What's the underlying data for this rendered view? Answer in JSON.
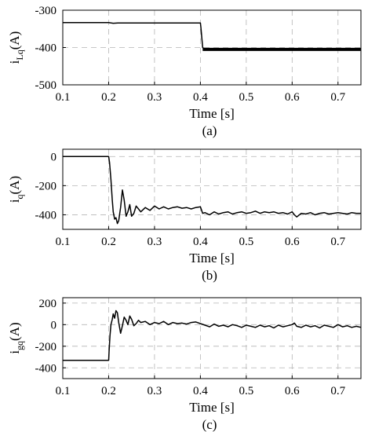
{
  "chart_data": [
    {
      "type": "line",
      "caption": "(a)",
      "xlabel": "Time [s]",
      "ylabel": {
        "main": "i",
        "sub": "Lq",
        "unit": "(A)"
      },
      "xlim": [
        0.1,
        0.75
      ],
      "ylim": [
        -500,
        -300
      ],
      "xticks": [
        0.1,
        0.2,
        0.3,
        0.4,
        0.5,
        0.6,
        0.7
      ],
      "xtick_labels": [
        "0.1",
        "0.2",
        "0.3",
        "0.4",
        "0.5",
        "0.6",
        "0.7"
      ],
      "yticks": [
        -300,
        -400,
        -500
      ],
      "ytick_labels": [
        "-300",
        "-400",
        "-500"
      ],
      "grid": true,
      "series": [
        {
          "x": [
            0.1,
            0.2,
            0.21,
            0.22,
            0.25,
            0.3,
            0.35,
            0.4,
            0.401,
            0.405,
            0.41,
            0.45,
            0.5,
            0.55,
            0.6,
            0.65,
            0.7,
            0.75
          ],
          "y": [
            -333,
            -333,
            -335,
            -334,
            -334,
            -334,
            -334,
            -334,
            -345,
            -400,
            -405,
            -405,
            -405,
            -405,
            -405,
            -405,
            -405,
            -405
          ]
        }
      ]
    },
    {
      "type": "line",
      "caption": "(b)",
      "xlabel": "Time [s]",
      "ylabel": {
        "main": "i",
        "sub": "q",
        "unit": "(A)"
      },
      "xlim": [
        0.1,
        0.75
      ],
      "ylim": [
        -500,
        50
      ],
      "xticks": [
        0.1,
        0.2,
        0.3,
        0.4,
        0.5,
        0.6,
        0.7
      ],
      "xtick_labels": [
        "0.1",
        "0.2",
        "0.3",
        "0.4",
        "0.5",
        "0.6",
        "0.7"
      ],
      "yticks": [
        0,
        -200,
        -400
      ],
      "ytick_labels": [
        "0",
        "-200",
        "-400"
      ],
      "grid": true,
      "series": [
        {
          "x": [
            0.1,
            0.2,
            0.202,
            0.205,
            0.208,
            0.21,
            0.213,
            0.216,
            0.219,
            0.222,
            0.226,
            0.23,
            0.234,
            0.238,
            0.242,
            0.246,
            0.25,
            0.255,
            0.26,
            0.265,
            0.27,
            0.28,
            0.29,
            0.3,
            0.31,
            0.32,
            0.33,
            0.34,
            0.35,
            0.36,
            0.37,
            0.38,
            0.39,
            0.4,
            0.405,
            0.41,
            0.42,
            0.43,
            0.44,
            0.45,
            0.46,
            0.47,
            0.48,
            0.49,
            0.5,
            0.51,
            0.52,
            0.53,
            0.54,
            0.55,
            0.56,
            0.57,
            0.58,
            0.59,
            0.6,
            0.605,
            0.61,
            0.62,
            0.63,
            0.64,
            0.65,
            0.66,
            0.67,
            0.68,
            0.69,
            0.7,
            0.71,
            0.72,
            0.73,
            0.74,
            0.75
          ],
          "y": [
            0,
            0,
            -40,
            -160,
            -300,
            -380,
            -430,
            -420,
            -460,
            -440,
            -350,
            -230,
            -300,
            -410,
            -380,
            -330,
            -410,
            -390,
            -340,
            -360,
            -380,
            -350,
            -370,
            -340,
            -360,
            -345,
            -360,
            -350,
            -345,
            -355,
            -350,
            -360,
            -350,
            -345,
            -390,
            -385,
            -400,
            -380,
            -395,
            -385,
            -380,
            -395,
            -385,
            -380,
            -390,
            -385,
            -375,
            -390,
            -380,
            -385,
            -380,
            -390,
            -385,
            -395,
            -380,
            -400,
            -415,
            -390,
            -395,
            -385,
            -400,
            -390,
            -385,
            -395,
            -390,
            -385,
            -390,
            -395,
            -385,
            -390,
            -390
          ]
        }
      ]
    },
    {
      "type": "line",
      "caption": "(c)",
      "xlabel": "Time [s]",
      "ylabel": {
        "main": "i",
        "sub": "gq",
        "unit": "(A)"
      },
      "xlim": [
        0.1,
        0.75
      ],
      "ylim": [
        -500,
        250
      ],
      "xticks": [
        0.1,
        0.2,
        0.3,
        0.4,
        0.5,
        0.6,
        0.7
      ],
      "xtick_labels": [
        "0.1",
        "0.2",
        "0.3",
        "0.4",
        "0.5",
        "0.6",
        "0.7"
      ],
      "yticks": [
        200,
        0,
        -200,
        -400
      ],
      "ytick_labels": [
        "200",
        "0",
        "-200",
        "-400"
      ],
      "grid": true,
      "series": [
        {
          "x": [
            0.1,
            0.2,
            0.201,
            0.203,
            0.205,
            0.208,
            0.21,
            0.213,
            0.216,
            0.219,
            0.222,
            0.226,
            0.23,
            0.234,
            0.238,
            0.242,
            0.246,
            0.25,
            0.255,
            0.26,
            0.265,
            0.27,
            0.28,
            0.29,
            0.3,
            0.31,
            0.32,
            0.33,
            0.34,
            0.35,
            0.36,
            0.37,
            0.38,
            0.39,
            0.4,
            0.41,
            0.42,
            0.43,
            0.44,
            0.45,
            0.46,
            0.47,
            0.48,
            0.49,
            0.5,
            0.51,
            0.52,
            0.53,
            0.54,
            0.55,
            0.56,
            0.57,
            0.58,
            0.59,
            0.6,
            0.605,
            0.61,
            0.62,
            0.63,
            0.64,
            0.65,
            0.66,
            0.67,
            0.68,
            0.69,
            0.7,
            0.71,
            0.72,
            0.73,
            0.74,
            0.75
          ],
          "y": [
            -330,
            -330,
            -250,
            -100,
            0,
            50,
            100,
            60,
            130,
            110,
            20,
            -80,
            -10,
            70,
            40,
            0,
            80,
            50,
            -10,
            10,
            40,
            20,
            30,
            0,
            20,
            10,
            30,
            0,
            20,
            10,
            15,
            5,
            20,
            25,
            10,
            -5,
            -20,
            5,
            -15,
            -5,
            -20,
            0,
            -10,
            -25,
            -5,
            -15,
            -25,
            -5,
            -20,
            -10,
            -30,
            -5,
            -20,
            -10,
            0,
            15,
            -15,
            -25,
            -5,
            -20,
            -10,
            -30,
            -5,
            -15,
            -25,
            0,
            -20,
            -10,
            -25,
            -15,
            -25
          ]
        }
      ]
    }
  ]
}
